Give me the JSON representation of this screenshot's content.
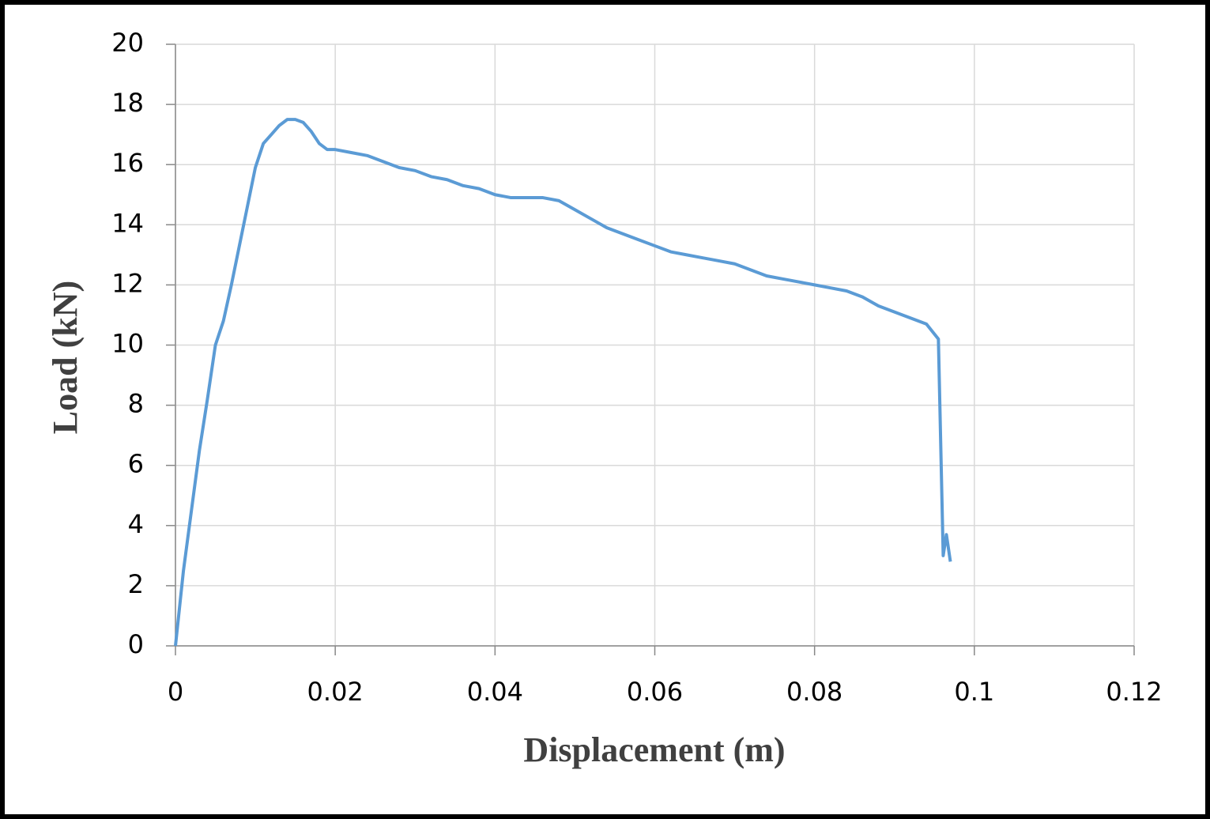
{
  "chart_data": {
    "type": "line",
    "x_label": "Displacement (m)",
    "y_label": "Load (kN)",
    "xlim": [
      0,
      0.12
    ],
    "xticks": [
      0,
      0.02,
      0.04,
      0.06,
      0.08,
      0.1,
      0.12
    ],
    "ylim": [
      0,
      20
    ],
    "yticks": [
      0,
      2,
      4,
      6,
      8,
      10,
      12,
      14,
      16,
      18,
      20
    ],
    "grid": true,
    "series": [
      {
        "color": "#5b9bd5",
        "x": [
          0,
          0.001,
          0.002,
          0.003,
          0.004,
          0.005,
          0.006,
          0.007,
          0.008,
          0.009,
          0.01,
          0.011,
          0.012,
          0.013,
          0.014,
          0.015,
          0.016,
          0.017,
          0.018,
          0.019,
          0.02,
          0.022,
          0.024,
          0.026,
          0.028,
          0.03,
          0.032,
          0.034,
          0.036,
          0.038,
          0.04,
          0.042,
          0.044,
          0.046,
          0.048,
          0.05,
          0.052,
          0.054,
          0.056,
          0.058,
          0.06,
          0.062,
          0.064,
          0.066,
          0.068,
          0.07,
          0.072,
          0.074,
          0.076,
          0.078,
          0.08,
          0.082,
          0.084,
          0.086,
          0.088,
          0.09,
          0.092,
          0.094,
          0.0955,
          0.0961,
          0.0965,
          0.097
        ],
        "values": [
          0,
          2.5,
          4.5,
          6.5,
          8.2,
          10,
          10.8,
          12,
          13.3,
          14.6,
          15.9,
          16.7,
          17.0,
          17.3,
          17.5,
          17.5,
          17.4,
          17.1,
          16.7,
          16.5,
          16.5,
          16.4,
          16.3,
          16.1,
          15.9,
          15.8,
          15.6,
          15.5,
          15.3,
          15.2,
          15.0,
          14.9,
          14.9,
          14.9,
          14.8,
          14.5,
          14.2,
          13.9,
          13.7,
          13.5,
          13.3,
          13.1,
          13.0,
          12.9,
          12.8,
          12.7,
          12.5,
          12.3,
          12.2,
          12.1,
          12.0,
          11.9,
          11.8,
          11.6,
          11.3,
          11.1,
          10.9,
          10.7,
          10.2,
          3.0,
          3.7,
          2.8
        ]
      }
    ]
  }
}
